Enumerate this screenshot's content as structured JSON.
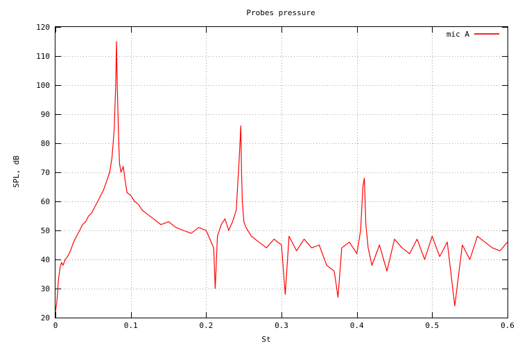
{
  "chart_data": {
    "type": "line",
    "title": "Probes pressure",
    "xlabel": "St",
    "ylabel": "SPL, dB",
    "xlim": [
      0,
      0.6
    ],
    "ylim": [
      20,
      120
    ],
    "x_ticks": [
      0,
      0.1,
      0.2,
      0.3,
      0.4,
      0.5,
      0.6
    ],
    "x_tick_labels": [
      "0",
      "0.1",
      "0.2",
      "0.3",
      "0.4",
      "0.5",
      "0.6"
    ],
    "y_ticks": [
      20,
      30,
      40,
      50,
      60,
      70,
      80,
      90,
      100,
      110,
      120
    ],
    "y_tick_labels": [
      "20",
      "30",
      "40",
      "50",
      "60",
      "70",
      "80",
      "90",
      "100",
      "110",
      "120"
    ],
    "grid": true,
    "legend_position": "top-right",
    "series": [
      {
        "name": "mic A",
        "color": "#ff0000",
        "x": [
          0.0,
          0.002,
          0.004,
          0.006,
          0.008,
          0.01,
          0.013,
          0.016,
          0.02,
          0.024,
          0.028,
          0.032,
          0.036,
          0.04,
          0.044,
          0.048,
          0.052,
          0.056,
          0.06,
          0.064,
          0.068,
          0.072,
          0.075,
          0.078,
          0.08,
          0.081,
          0.082,
          0.083,
          0.084,
          0.085,
          0.087,
          0.09,
          0.092,
          0.095,
          0.1,
          0.105,
          0.11,
          0.115,
          0.12,
          0.13,
          0.14,
          0.15,
          0.16,
          0.17,
          0.18,
          0.19,
          0.2,
          0.205,
          0.21,
          0.212,
          0.215,
          0.22,
          0.225,
          0.23,
          0.235,
          0.24,
          0.244,
          0.246,
          0.247,
          0.248,
          0.25,
          0.253,
          0.26,
          0.27,
          0.28,
          0.29,
          0.3,
          0.305,
          0.31,
          0.32,
          0.33,
          0.34,
          0.35,
          0.36,
          0.37,
          0.375,
          0.38,
          0.39,
          0.4,
          0.405,
          0.408,
          0.41,
          0.412,
          0.415,
          0.42,
          0.43,
          0.44,
          0.45,
          0.46,
          0.47,
          0.48,
          0.49,
          0.5,
          0.51,
          0.52,
          0.53,
          0.54,
          0.55,
          0.56,
          0.57,
          0.58,
          0.59,
          0.6
        ],
        "y": [
          22,
          26,
          33,
          37,
          39,
          38,
          40,
          41,
          43,
          46,
          48,
          50,
          52,
          53,
          55,
          56,
          58,
          60,
          62,
          64,
          67,
          70,
          75,
          85,
          100,
          115,
          100,
          90,
          80,
          73,
          70,
          72,
          68,
          63,
          62,
          60,
          59,
          57,
          56,
          54,
          52,
          53,
          51,
          50,
          49,
          51,
          50,
          47,
          44,
          30,
          48,
          52,
          54,
          50,
          53,
          57,
          75,
          86,
          70,
          60,
          53,
          51,
          48,
          46,
          44,
          47,
          45,
          28,
          48,
          43,
          47,
          44,
          45,
          38,
          36,
          27,
          44,
          46,
          42,
          50,
          65,
          68,
          52,
          44,
          38,
          45,
          36,
          47,
          44,
          42,
          47,
          40,
          48,
          41,
          46,
          24,
          45,
          40,
          48,
          46,
          44,
          43,
          46
        ]
      }
    ]
  }
}
